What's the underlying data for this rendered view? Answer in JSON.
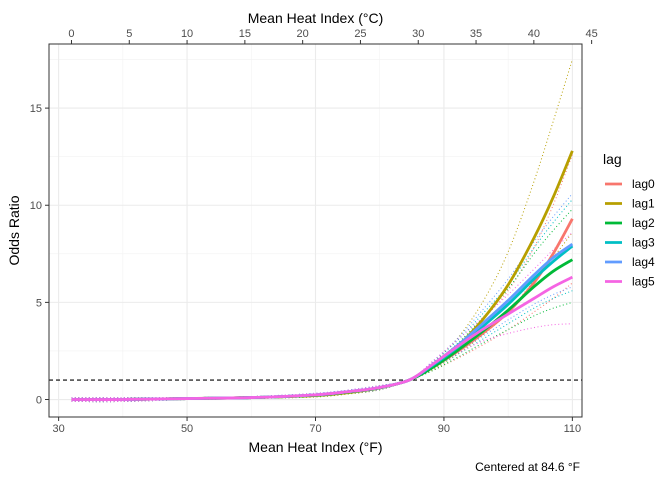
{
  "chart_data": {
    "type": "line",
    "xlabel": "Mean Heat Index (°F)",
    "x2label": "Mean Heat Index (°C)",
    "ylabel": "Odds Ratio",
    "caption": "Centered at 84.6 °F",
    "xlim": [
      28.5,
      111.5
    ],
    "ylim": [
      -0.9,
      18.3
    ],
    "x_ticks": [
      30,
      50,
      70,
      90,
      110
    ],
    "x_minor_ticks": [
      40,
      60,
      80,
      100
    ],
    "x2_ticks_c": [
      0,
      5,
      10,
      15,
      20,
      25,
      30,
      35,
      40,
      45
    ],
    "y_ticks": [
      0,
      5,
      10,
      15
    ],
    "y_minor_ticks": [
      2.5,
      7.5,
      12.5,
      17.5
    ],
    "reference_line": 1,
    "legend": {
      "title": "lag",
      "position": "right"
    },
    "x": [
      32,
      40,
      50,
      60,
      70,
      75,
      80,
      84.6,
      88,
      92,
      96,
      100,
      104,
      107,
      110
    ],
    "series": [
      {
        "name": "lag0",
        "color": "#F8766D",
        "values": [
          0.0,
          0.0,
          0.05,
          0.1,
          0.22,
          0.38,
          0.6,
          1.0,
          1.6,
          2.45,
          3.4,
          4.5,
          6.0,
          7.5,
          9.3
        ],
        "ci_low": [
          -0.1,
          -0.1,
          0.0,
          0.05,
          0.15,
          0.3,
          0.5,
          1.0,
          1.45,
          2.1,
          2.8,
          3.6,
          4.5,
          5.2,
          6.0
        ],
        "ci_high": [
          0.1,
          0.1,
          0.1,
          0.15,
          0.3,
          0.45,
          0.7,
          1.0,
          1.75,
          2.8,
          4.1,
          5.6,
          7.8,
          10.0,
          12.6
        ]
      },
      {
        "name": "lag1",
        "color": "#B79F00",
        "values": [
          0.0,
          0.0,
          0.05,
          0.1,
          0.2,
          0.35,
          0.6,
          1.0,
          1.65,
          2.7,
          4.1,
          5.9,
          8.3,
          10.4,
          12.8
        ],
        "ci_low": [
          -0.1,
          -0.1,
          0.0,
          0.05,
          0.13,
          0.28,
          0.5,
          1.0,
          1.5,
          2.3,
          3.3,
          4.5,
          6.1,
          7.3,
          8.6
        ],
        "ci_high": [
          0.1,
          0.1,
          0.1,
          0.15,
          0.28,
          0.42,
          0.7,
          1.0,
          1.8,
          3.1,
          5.0,
          7.6,
          11.2,
          14.3,
          17.5
        ]
      },
      {
        "name": "lag2",
        "color": "#00BA38",
        "values": [
          0.0,
          0.0,
          0.05,
          0.1,
          0.22,
          0.38,
          0.6,
          1.0,
          1.6,
          2.5,
          3.5,
          4.6,
          5.8,
          6.6,
          7.2
        ],
        "ci_low": [
          -0.1,
          -0.1,
          0.0,
          0.05,
          0.15,
          0.3,
          0.5,
          1.0,
          1.45,
          2.15,
          2.9,
          3.6,
          4.3,
          4.7,
          5.0
        ],
        "ci_high": [
          0.1,
          0.1,
          0.1,
          0.15,
          0.3,
          0.45,
          0.7,
          1.0,
          1.75,
          2.85,
          4.2,
          5.7,
          7.5,
          8.7,
          9.8
        ]
      },
      {
        "name": "lag3",
        "color": "#00BFC4",
        "values": [
          0.0,
          0.0,
          0.05,
          0.1,
          0.24,
          0.4,
          0.62,
          1.0,
          1.7,
          2.65,
          3.75,
          4.9,
          6.2,
          7.1,
          7.9
        ],
        "ci_low": [
          -0.1,
          -0.1,
          0.0,
          0.05,
          0.17,
          0.32,
          0.52,
          1.0,
          1.55,
          2.3,
          3.1,
          3.9,
          4.7,
          5.2,
          5.6
        ],
        "ci_high": [
          0.1,
          0.1,
          0.1,
          0.15,
          0.32,
          0.48,
          0.72,
          1.0,
          1.85,
          3.0,
          4.4,
          5.9,
          7.8,
          9.1,
          10.3
        ]
      },
      {
        "name": "lag4",
        "color": "#619CFF",
        "values": [
          0.0,
          0.0,
          0.05,
          0.1,
          0.24,
          0.4,
          0.62,
          1.0,
          1.75,
          2.75,
          3.9,
          5.1,
          6.4,
          7.3,
          8.0
        ],
        "ci_low": [
          -0.1,
          -0.1,
          0.0,
          0.05,
          0.17,
          0.32,
          0.52,
          1.0,
          1.6,
          2.4,
          3.25,
          4.1,
          4.9,
          5.4,
          5.8
        ],
        "ci_high": [
          0.1,
          0.1,
          0.1,
          0.15,
          0.32,
          0.48,
          0.72,
          1.0,
          1.9,
          3.1,
          4.6,
          6.2,
          8.1,
          9.4,
          10.6
        ]
      },
      {
        "name": "lag5",
        "color": "#F564E3",
        "values": [
          0.0,
          0.0,
          0.05,
          0.1,
          0.24,
          0.4,
          0.62,
          1.0,
          1.75,
          2.7,
          3.6,
          4.4,
          5.2,
          5.8,
          6.3
        ],
        "ci_low": [
          -0.1,
          -0.1,
          0.0,
          0.05,
          0.17,
          0.32,
          0.52,
          1.0,
          1.6,
          2.35,
          3.0,
          3.4,
          3.7,
          3.85,
          3.9
        ],
        "ci_high": [
          0.1,
          0.1,
          0.1,
          0.15,
          0.32,
          0.48,
          0.72,
          1.0,
          1.9,
          3.05,
          4.2,
          5.4,
          6.7,
          7.7,
          8.6
        ]
      }
    ]
  }
}
